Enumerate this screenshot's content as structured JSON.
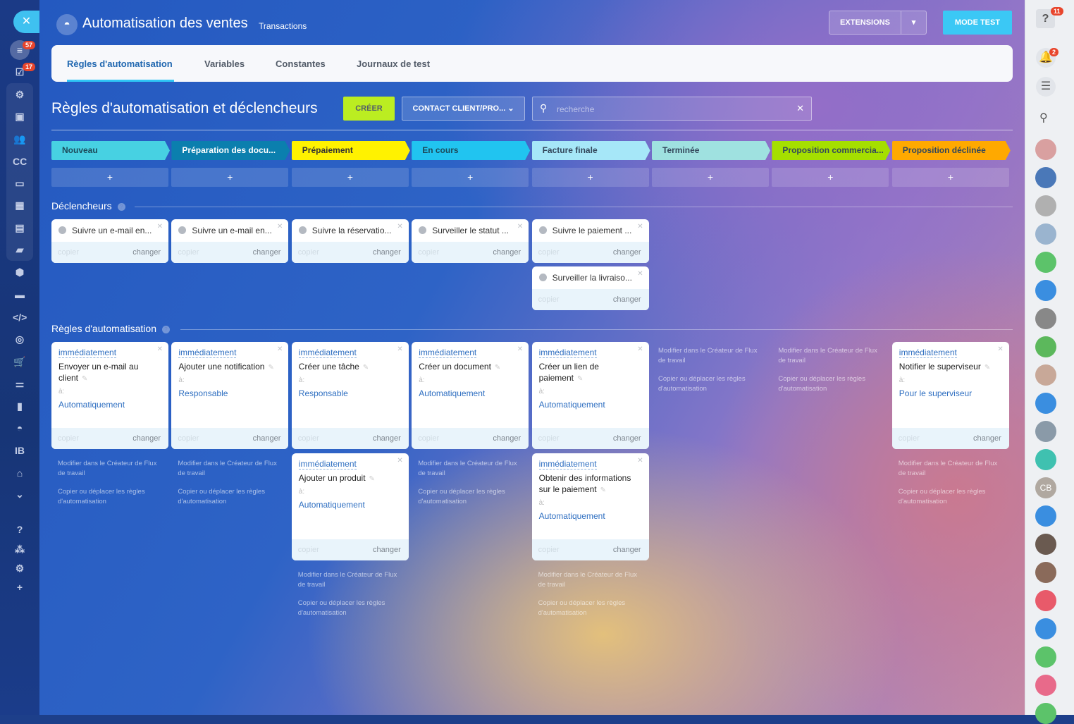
{
  "header": {
    "title": "Automatisation des ventes",
    "subtitle": "Transactions",
    "extensions": "EXTENSIONS",
    "mode_test": "MODE TEST"
  },
  "left_sidebar": {
    "badges": {
      "filter": "57",
      "tasks": "17"
    },
    "cc": "CC",
    "ib": "IB"
  },
  "right_sidebar": {
    "badges": {
      "help": "11",
      "notifications": "2"
    },
    "avatar_cb": "CB"
  },
  "tabs": [
    {
      "label": "Règles d'automatisation",
      "active": true
    },
    {
      "label": "Variables"
    },
    {
      "label": "Constantes"
    },
    {
      "label": "Journaux de test"
    }
  ],
  "page": {
    "title": "Règles d'automatisation et déclencheurs",
    "create": "CRÉER",
    "contact_select": "CONTACT CLIENT/PRO...",
    "search_placeholder": "recherche"
  },
  "stages": [
    {
      "label": "Nouveau",
      "color": "#47d1e2",
      "text": "#1c4a5a"
    },
    {
      "label": "Préparation des docu...",
      "color": "#0b7fae",
      "text": "#ffffff"
    },
    {
      "label": "Prépaiement",
      "color": "#fff200",
      "text": "#333333"
    },
    {
      "label": "En cours",
      "color": "#21c4f0",
      "text": "#1c4a5a"
    },
    {
      "label": "Facture finale",
      "color": "#a6e7f8",
      "text": "#33475b"
    },
    {
      "label": "Terminée",
      "color": "#9fe1e0",
      "text": "#33475b"
    },
    {
      "label": "Proposition commercia...",
      "color": "#a5df00",
      "text": "#33475b"
    },
    {
      "label": "Proposition déclinée",
      "color": "#ffa900",
      "text": "#33475b"
    }
  ],
  "plus": "+",
  "triggers_title": "Déclencheurs",
  "rules_title": "Règles d'automatisation",
  "copy": "copier",
  "change": "changer",
  "to": "à:",
  "delay": "immédiatement",
  "link_edit": "Modifier dans le Créateur de Flux de travail",
  "link_copy": "Copier ou déplacer les règles d'automatisation",
  "triggers": [
    [
      "Suivre un e-mail en..."
    ],
    [
      "Suivre un e-mail en..."
    ],
    [
      "Suivre la réservatio..."
    ],
    [
      "Surveiller le statut ..."
    ],
    [
      "Suivre le paiement ...",
      "Surveiller la livraiso..."
    ],
    [],
    [],
    []
  ],
  "rules": [
    [
      {
        "name": "Envoyer un e-mail au client",
        "who": "Automatiquement"
      }
    ],
    [
      {
        "name": "Ajouter une notification",
        "who": "Responsable"
      }
    ],
    [
      {
        "name": "Créer une tâche",
        "who": "Responsable"
      },
      {
        "name": "Ajouter un produit",
        "who": "Automatiquement"
      }
    ],
    [
      {
        "name": "Créer un document",
        "who": "Automatiquement"
      }
    ],
    [
      {
        "name": "Créer un lien de paiement",
        "who": "Automatiquement"
      },
      {
        "name": "Obtenir des informations sur le paiement",
        "who": "Automatiquement"
      }
    ],
    [],
    [],
    [
      {
        "name": "Notifier le superviseur",
        "who": "Pour le superviseur"
      }
    ]
  ]
}
